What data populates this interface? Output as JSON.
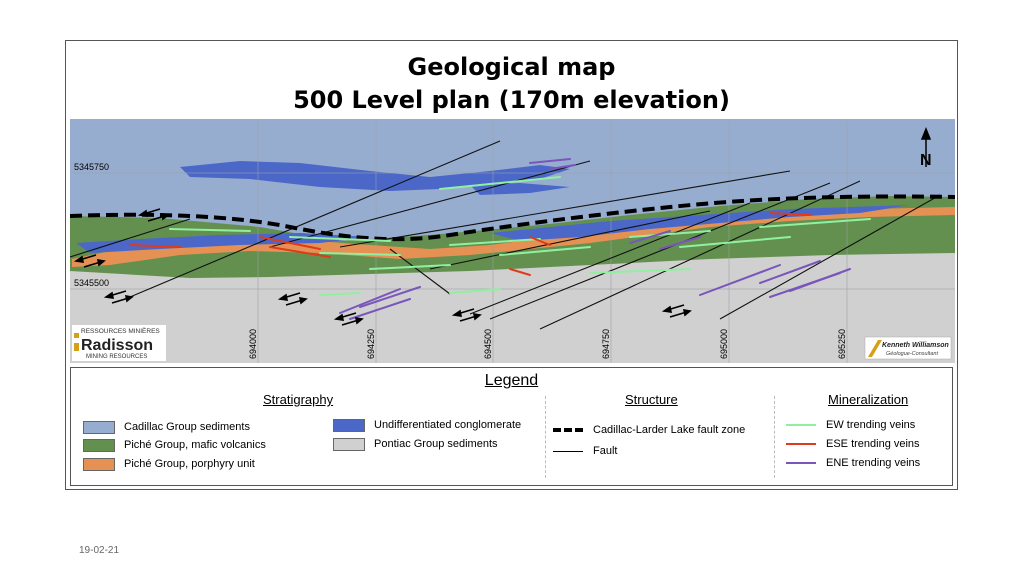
{
  "title_line1": "Geological map",
  "title_line2": "500 Level plan (170m elevation)",
  "map": {
    "north_label": "N",
    "northing_labels": [
      "5345750",
      "5345500"
    ],
    "easting_labels": [
      "694000",
      "694250",
      "694500",
      "694750",
      "695000",
      "695250"
    ],
    "logo_left": {
      "line1": "RESSOURCES MINIÈRES",
      "line2": "Radisson",
      "line3": "MINING RESOURCES"
    },
    "logo_right": {
      "line1": "Kenneth Williamson",
      "line2": "Géologue-Consultant"
    }
  },
  "legend": {
    "title": "Legend",
    "stratigraphy": {
      "heading": "Stratigraphy",
      "items": [
        {
          "label": "Cadillac Group sediments",
          "color": "#97add0"
        },
        {
          "label": "Piché Group, mafic volcanics",
          "color": "#63904f"
        },
        {
          "label": "Piché Group, porphyry unit",
          "color": "#e59154"
        },
        {
          "label": "Undifferentiated conglomerate",
          "color": "#4b68c9"
        },
        {
          "label": "Pontiac Group sediments",
          "color": "#d0d0d0"
        }
      ]
    },
    "structure": {
      "heading": "Structure",
      "items": [
        {
          "label": "Cadillac-Larder Lake fault zone"
        },
        {
          "label": "Fault"
        }
      ]
    },
    "mineralization": {
      "heading": "Mineralization",
      "items": [
        {
          "label": "EW trending veins",
          "color": "#90f0a0"
        },
        {
          "label": "ESE trending veins",
          "color": "#e03a1c"
        },
        {
          "label": "ENE trending veins",
          "color": "#7a55bb"
        }
      ]
    }
  },
  "footer_date": "19-02-21"
}
